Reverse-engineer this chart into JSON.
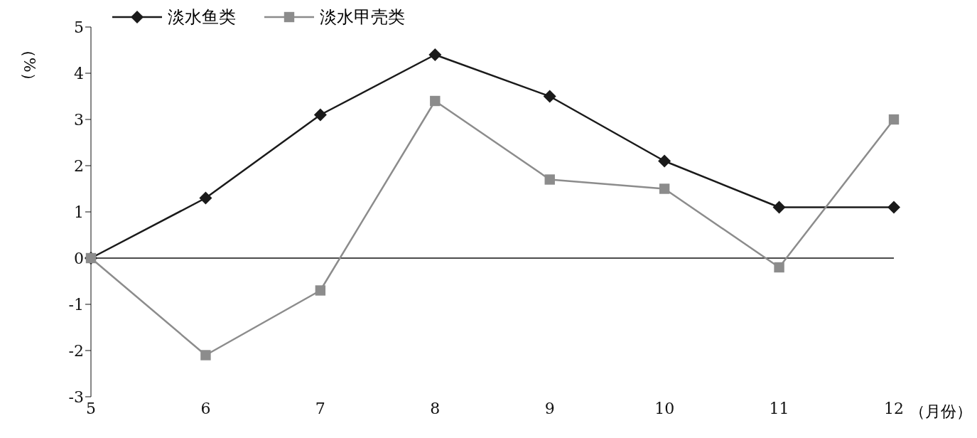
{
  "chart_data": {
    "type": "line",
    "xlabel": "（月份）",
    "ylabel": "（%）",
    "categories": [
      "5",
      "6",
      "7",
      "8",
      "9",
      "10",
      "11",
      "12"
    ],
    "series": [
      {
        "name": "淡水鱼类",
        "color": "#1a1a1a",
        "marker": "diamond",
        "values": [
          0,
          1.3,
          3.1,
          4.4,
          3.5,
          2.1,
          1.1,
          1.1
        ]
      },
      {
        "name": "淡水甲壳类",
        "color": "#8c8c8c",
        "marker": "square",
        "values": [
          0,
          -2.1,
          -0.7,
          3.4,
          1.7,
          1.5,
          -0.2,
          3.0
        ]
      }
    ],
    "ylim": [
      -3,
      5
    ],
    "yticks": [
      -3,
      -2,
      -1,
      0,
      1,
      2,
      3,
      4,
      5
    ],
    "grid": false,
    "ref_lines": [
      {
        "axis": "y",
        "value": 0,
        "color": "#111111"
      }
    ],
    "legend": "top left",
    "line_style": "solid"
  }
}
